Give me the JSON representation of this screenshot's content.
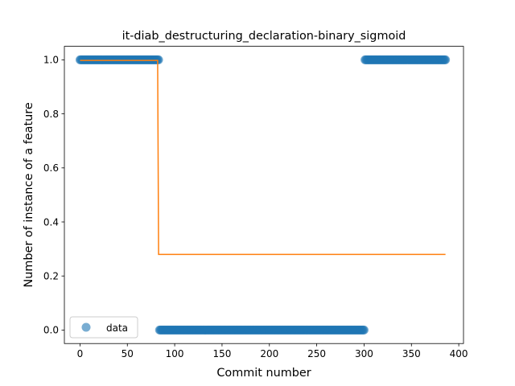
{
  "chart_data": {
    "type": "scatter",
    "title": "it-diab_destructuring_declaration-binary_sigmoid",
    "xlabel": "Commit number",
    "ylabel": "Number of instance of a feature",
    "xlim": [
      -16.5,
      405
    ],
    "ylim": [
      -0.05,
      1.05
    ],
    "xticks": [
      0,
      50,
      100,
      150,
      200,
      250,
      300,
      350,
      400
    ],
    "yticks": [
      0.0,
      0.2,
      0.4,
      0.6,
      0.8,
      1.0
    ],
    "xtick_labels": [
      "0",
      "50",
      "100",
      "150",
      "200",
      "250",
      "300",
      "350",
      "400"
    ],
    "ytick_labels": [
      "0.0",
      "0.2",
      "0.4",
      "0.6",
      "0.8",
      "1.0"
    ],
    "grid": false,
    "legend_position": "lower-left",
    "series": [
      {
        "name": "data",
        "type": "scatter",
        "color": "#1f77b4",
        "segments": [
          {
            "x_start": 0,
            "x_end": 83,
            "y": 1.0
          },
          {
            "x_start": 84,
            "x_end": 300,
            "y": 0.0
          },
          {
            "x_start": 301,
            "x_end": 386,
            "y": 1.0
          }
        ]
      },
      {
        "type": "line",
        "color": "#ff7f0e",
        "x": [
          0,
          82,
          83,
          386
        ],
        "y": [
          0.998,
          0.998,
          0.28,
          0.28
        ]
      }
    ]
  }
}
